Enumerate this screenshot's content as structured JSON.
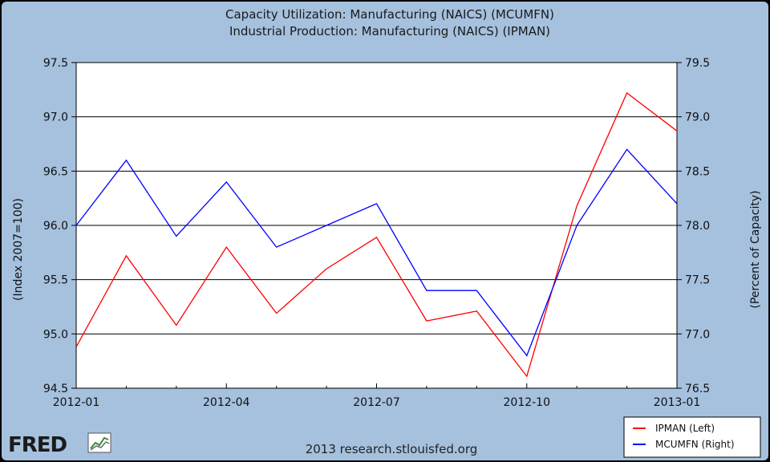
{
  "chart_data": {
    "type": "line",
    "title": [
      "Capacity Utilization: Manufacturing (NAICS) (MCUMFN)",
      "Industrial Production: Manufacturing (NAICS) (IPMAN)"
    ],
    "x": [
      "2012-01",
      "2012-02",
      "2012-03",
      "2012-04",
      "2012-05",
      "2012-06",
      "2012-07",
      "2012-08",
      "2012-09",
      "2012-10",
      "2012-11",
      "2012-12",
      "2013-01"
    ],
    "x_tick_labels": [
      "2012-01",
      "2012-04",
      "2012-07",
      "2012-10",
      "2013-01"
    ],
    "y_left": {
      "label": "(Index 2007=100)",
      "range": [
        94.5,
        97.5
      ],
      "ticks": [
        "94.5",
        "95.0",
        "95.5",
        "96.0",
        "96.5",
        "97.0",
        "97.5"
      ]
    },
    "y_right": {
      "label": "(Percent of Capacity)",
      "range": [
        76.5,
        79.5
      ],
      "ticks": [
        "76.5",
        "77.0",
        "77.5",
        "78.0",
        "78.5",
        "79.0",
        "79.5"
      ]
    },
    "grid": "horizontal",
    "legend_position": "bottom-right",
    "series": [
      {
        "name": "IPMAN (Left)",
        "axis": "left",
        "color": "#ff0000",
        "values": [
          94.88,
          95.72,
          95.08,
          95.8,
          95.19,
          95.6,
          95.89,
          95.12,
          95.21,
          94.61,
          96.18,
          97.22,
          96.87
        ]
      },
      {
        "name": "MCUMFN (Right)",
        "axis": "right",
        "color": "#0000ff",
        "values": [
          78.0,
          78.6,
          77.9,
          78.4,
          77.8,
          78.0,
          78.2,
          77.4,
          77.4,
          76.8,
          78.0,
          78.7,
          78.2
        ]
      }
    ]
  },
  "footer": {
    "credit": "2013 research.stlouisfed.org",
    "logo_text": "FRED"
  },
  "colors": {
    "background": "#a5c1de",
    "plot_area": "#ffffff",
    "grid": "#000000"
  }
}
